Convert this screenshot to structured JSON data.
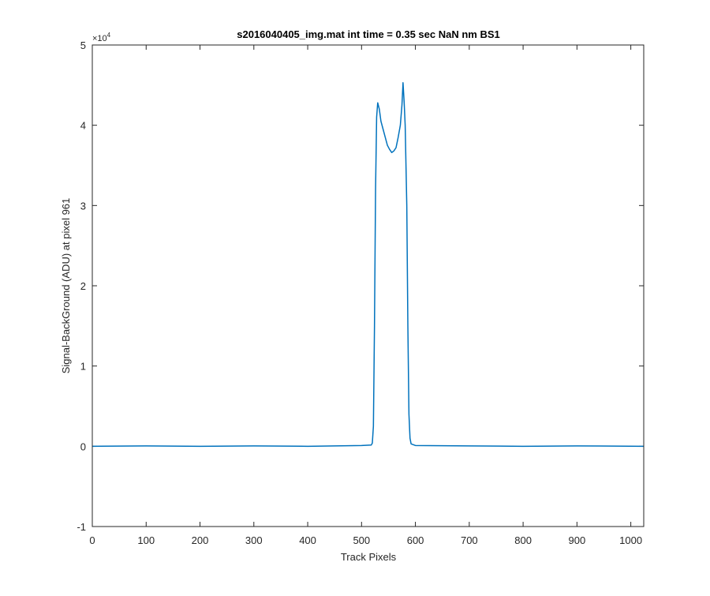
{
  "chart_data": {
    "type": "line",
    "title": "s2016040405_img.mat int time = 0.35 sec  NaN nm BS1",
    "xlabel": "Track Pixels",
    "ylabel": "Signal-BackGround (ADU) at pixel 961",
    "y_exponent_label": "×10",
    "y_exponent_power": "4",
    "xlim": [
      0,
      1024
    ],
    "ylim": [
      -10000,
      50000
    ],
    "x_ticks": [
      0,
      100,
      200,
      300,
      400,
      500,
      600,
      700,
      800,
      900,
      1000
    ],
    "x_tick_labels": [
      "0",
      "100",
      "200",
      "300",
      "400",
      "500",
      "600",
      "700",
      "800",
      "900",
      "1000"
    ],
    "y_ticks": [
      -10000,
      0,
      10000,
      20000,
      30000,
      40000,
      50000
    ],
    "y_tick_labels": [
      "-1",
      "0",
      "1",
      "2",
      "3",
      "4",
      "5"
    ],
    "grid": false,
    "line_color": "#0072BD",
    "series": [
      {
        "x": [
          0,
          100,
          200,
          300,
          400,
          500,
          518,
          520,
          522,
          524,
          526,
          528,
          530,
          533,
          536,
          540,
          544,
          548,
          552,
          556,
          560,
          564,
          568,
          572,
          575,
          577,
          579,
          581,
          584,
          586,
          588,
          590,
          592,
          600,
          700,
          800,
          900,
          1024
        ],
        "y": [
          0,
          50,
          0,
          50,
          0,
          100,
          150,
          400,
          2500,
          15000,
          32000,
          41000,
          42800,
          42000,
          40500,
          39500,
          38500,
          37500,
          37000,
          36600,
          36800,
          37200,
          38500,
          40000,
          42500,
          45300,
          43000,
          40000,
          30000,
          15000,
          4000,
          1000,
          300,
          100,
          50,
          0,
          50,
          0
        ]
      }
    ]
  }
}
